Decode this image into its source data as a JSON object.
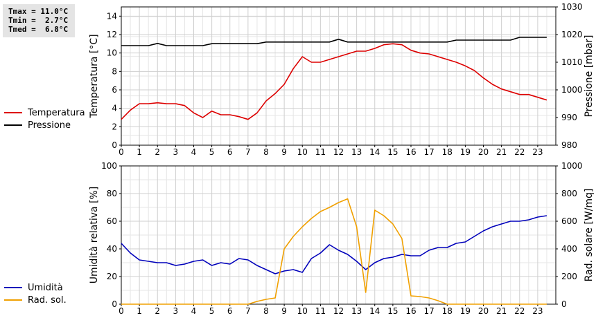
{
  "stats": {
    "tmax": "Tmax = 11.0°C",
    "tmin": "Tmin =  2.7°C",
    "tmed": "Tmed =  6.8°C"
  },
  "legend_top": [
    {
      "label": "Temperatura",
      "color": "#dd0000"
    },
    {
      "label": "Pressione",
      "color": "#000000"
    }
  ],
  "legend_bottom": [
    {
      "label": "Umidità",
      "color": "#0000bb"
    },
    {
      "label": "Rad. sol.",
      "color": "#f0a000"
    }
  ],
  "chart_data": [
    {
      "type": "line",
      "ylabel": "Temperatura [°C]",
      "y2label": "Pressione [mbar]",
      "xlim": [
        0,
        24
      ],
      "ylim": [
        0,
        15
      ],
      "y2lim": [
        980,
        1030
      ],
      "xticks": [
        0,
        1,
        2,
        3,
        4,
        5,
        6,
        7,
        8,
        9,
        10,
        11,
        12,
        13,
        14,
        15,
        16,
        17,
        18,
        19,
        20,
        21,
        22,
        23
      ],
      "yticks": [
        0,
        2,
        4,
        6,
        8,
        10,
        12,
        14
      ],
      "y2ticks": [
        980,
        990,
        1000,
        1010,
        1020,
        1030
      ],
      "grid": true,
      "series": [
        {
          "name": "Temperatura",
          "axis": "left",
          "color": "#dd0000",
          "x": [
            0,
            0.5,
            1,
            1.5,
            2,
            2.5,
            3,
            3.5,
            4,
            4.5,
            5,
            5.5,
            6,
            6.5,
            7,
            7.5,
            8,
            8.5,
            9,
            9.5,
            10,
            10.5,
            11,
            11.5,
            12,
            12.5,
            13,
            13.5,
            14,
            14.5,
            15,
            15.5,
            16,
            16.5,
            17,
            17.5,
            18,
            18.5,
            19,
            19.5,
            20,
            20.5,
            21,
            21.5,
            22,
            22.5,
            23,
            23.5
          ],
          "y": [
            2.8,
            3.8,
            4.5,
            4.5,
            4.6,
            4.5,
            4.5,
            4.3,
            3.5,
            3.0,
            3.7,
            3.3,
            3.3,
            3.1,
            2.8,
            3.5,
            4.8,
            5.6,
            6.6,
            8.3,
            9.6,
            9.0,
            9.0,
            9.3,
            9.6,
            9.9,
            10.2,
            10.2,
            10.5,
            10.9,
            11.0,
            10.9,
            10.3,
            10.0,
            9.9,
            9.6,
            9.3,
            9.0,
            8.6,
            8.1,
            7.3,
            6.6,
            6.1,
            5.8,
            5.5,
            5.5,
            5.2,
            4.9
          ]
        },
        {
          "name": "Pressione",
          "axis": "right",
          "color": "#000000",
          "x": [
            0,
            0.5,
            1,
            1.5,
            2,
            2.5,
            3,
            3.5,
            4,
            4.5,
            5,
            5.5,
            6,
            6.5,
            7,
            7.5,
            8,
            8.5,
            9,
            9.5,
            10,
            10.5,
            11,
            11.5,
            12,
            12.5,
            13,
            13.5,
            14,
            14.5,
            15,
            15.5,
            16,
            16.5,
            17,
            17.5,
            18,
            18.5,
            19,
            19.5,
            20,
            20.5,
            21,
            21.5,
            22,
            22.5,
            23,
            23.5
          ],
          "y": [
            1016,
            1016,
            1016,
            1016,
            1016.8,
            1016,
            1016,
            1016,
            1016,
            1016,
            1016.7,
            1016.7,
            1016.7,
            1016.7,
            1016.7,
            1016.7,
            1017.3,
            1017.3,
            1017.3,
            1017.3,
            1017.3,
            1017.3,
            1017.3,
            1017.3,
            1018.3,
            1017.3,
            1017.3,
            1017.3,
            1017.3,
            1017.3,
            1017.3,
            1017.3,
            1017.3,
            1017.3,
            1017.3,
            1017.3,
            1017.3,
            1018,
            1018,
            1018,
            1018,
            1018,
            1018,
            1018,
            1019,
            1019,
            1019,
            1019
          ]
        }
      ]
    },
    {
      "type": "line",
      "ylabel": "Umidità relativa [%]",
      "y2label": "Rad. solare [W/mq]",
      "xlim": [
        0,
        24
      ],
      "ylim": [
        0,
        100
      ],
      "y2lim": [
        0,
        1000
      ],
      "xticks": [
        0,
        1,
        2,
        3,
        4,
        5,
        6,
        7,
        8,
        9,
        10,
        11,
        12,
        13,
        14,
        15,
        16,
        17,
        18,
        19,
        20,
        21,
        22,
        23
      ],
      "yticks": [
        0,
        20,
        40,
        60,
        80,
        100
      ],
      "y2ticks": [
        0,
        200,
        400,
        600,
        800,
        1000
      ],
      "grid": true,
      "series": [
        {
          "name": "Umidità",
          "axis": "left",
          "color": "#0000bb",
          "x": [
            0,
            0.5,
            1,
            1.5,
            2,
            2.5,
            3,
            3.5,
            4,
            4.5,
            5,
            5.5,
            6,
            6.5,
            7,
            7.5,
            8,
            8.5,
            9,
            9.5,
            10,
            10.5,
            11,
            11.5,
            12,
            12.5,
            13,
            13.5,
            14,
            14.5,
            15,
            15.5,
            16,
            16.5,
            17,
            17.5,
            18,
            18.5,
            19,
            19.5,
            20,
            20.5,
            21,
            21.5,
            22,
            22.5,
            23,
            23.5
          ],
          "y": [
            44,
            37,
            32,
            31,
            30,
            30,
            28,
            29,
            31,
            32,
            28,
            30,
            29,
            33,
            32,
            28,
            25,
            22,
            24,
            25,
            23,
            33,
            37,
            43,
            39,
            36,
            31,
            25,
            30,
            33,
            34,
            36,
            35,
            35,
            39,
            41,
            41,
            44,
            45,
            49,
            53,
            56,
            58,
            60,
            60,
            61,
            63,
            64
          ]
        },
        {
          "name": "Rad. sol.",
          "axis": "right",
          "color": "#f0a000",
          "x": [
            0,
            1,
            2,
            3,
            4,
            5,
            6,
            7,
            7.5,
            8,
            8.5,
            9,
            9.5,
            10,
            10.5,
            11,
            11.5,
            12,
            12.5,
            13,
            13.5,
            14,
            14.5,
            15,
            15.5,
            16,
            16.5,
            17,
            17.5,
            18,
            19,
            20,
            21,
            22,
            23,
            23.5
          ],
          "y": [
            0,
            0,
            0,
            0,
            0,
            0,
            0,
            0,
            20,
            35,
            45,
            400,
            490,
            560,
            620,
            670,
            700,
            735,
            762,
            560,
            85,
            680,
            640,
            580,
            475,
            60,
            55,
            45,
            25,
            0,
            0,
            0,
            0,
            0,
            0,
            0
          ]
        }
      ]
    }
  ]
}
